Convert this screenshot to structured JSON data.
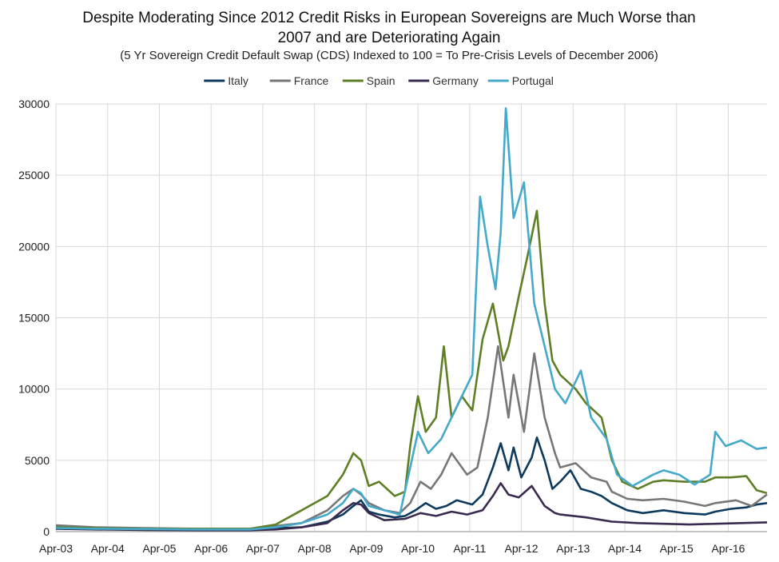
{
  "chart_data": {
    "type": "line",
    "title_line1": "Despite Moderating Since 2012 Credit Risks in European Sovereigns are Much Worse than",
    "title_line2": "2007 and are Deteriorating Again",
    "subtitle": "(5 Yr Sovereign Credit Default Swap (CDS) Indexed to 100 = To Pre-Crisis Levels of December 2006)",
    "xlabel": "",
    "ylabel": "",
    "ylim": [
      0,
      30000
    ],
    "yticks": [
      "0",
      "5000",
      "10000",
      "15000",
      "20000",
      "25000",
      "30000"
    ],
    "xticks": [
      "Apr-03",
      "Apr-04",
      "Apr-05",
      "Apr-06",
      "Apr-07",
      "Apr-08",
      "Apr-09",
      "Apr-10",
      "Apr-11",
      "Apr-12",
      "Apr-13",
      "Apr-14",
      "Apr-15",
      "Apr-16"
    ],
    "xlim": [
      2003.25,
      2017.0
    ],
    "grid": true,
    "legend_position": "top",
    "series": [
      {
        "name": "Italy",
        "color": "#0d3a5c",
        "points": [
          [
            2003.25,
            300
          ],
          [
            2004.0,
            250
          ],
          [
            2005.0,
            200
          ],
          [
            2006.0,
            150
          ],
          [
            2007.0,
            150
          ],
          [
            2007.5,
            250
          ],
          [
            2008.0,
            300
          ],
          [
            2008.5,
            700
          ],
          [
            2008.8,
            1200
          ],
          [
            2009.0,
            1800
          ],
          [
            2009.15,
            2200
          ],
          [
            2009.3,
            1400
          ],
          [
            2009.5,
            1200
          ],
          [
            2009.8,
            1000
          ],
          [
            2010.0,
            1100
          ],
          [
            2010.2,
            1500
          ],
          [
            2010.4,
            2000
          ],
          [
            2010.6,
            1600
          ],
          [
            2010.8,
            1800
          ],
          [
            2011.0,
            2200
          ],
          [
            2011.3,
            1900
          ],
          [
            2011.5,
            2600
          ],
          [
            2011.7,
            4500
          ],
          [
            2011.85,
            6200
          ],
          [
            2012.0,
            4300
          ],
          [
            2012.1,
            5900
          ],
          [
            2012.25,
            3800
          ],
          [
            2012.45,
            5200
          ],
          [
            2012.55,
            6600
          ],
          [
            2012.7,
            5000
          ],
          [
            2012.85,
            3000
          ],
          [
            2013.0,
            3500
          ],
          [
            2013.2,
            4300
          ],
          [
            2013.4,
            3000
          ],
          [
            2013.6,
            2800
          ],
          [
            2013.8,
            2500
          ],
          [
            2014.0,
            2000
          ],
          [
            2014.3,
            1500
          ],
          [
            2014.6,
            1300
          ],
          [
            2015.0,
            1500
          ],
          [
            2015.4,
            1300
          ],
          [
            2015.8,
            1200
          ],
          [
            2016.0,
            1400
          ],
          [
            2016.3,
            1600
          ],
          [
            2016.6,
            1700
          ],
          [
            2016.8,
            1900
          ],
          [
            2017.0,
            2000
          ]
        ]
      },
      {
        "name": "France",
        "color": "#777777",
        "points": [
          [
            2003.25,
            450
          ],
          [
            2004.0,
            300
          ],
          [
            2005.0,
            250
          ],
          [
            2006.0,
            200
          ],
          [
            2007.0,
            200
          ],
          [
            2007.5,
            400
          ],
          [
            2008.0,
            600
          ],
          [
            2008.5,
            1500
          ],
          [
            2008.8,
            2500
          ],
          [
            2009.0,
            3000
          ],
          [
            2009.15,
            2600
          ],
          [
            2009.3,
            2000
          ],
          [
            2009.6,
            1500
          ],
          [
            2009.9,
            1300
          ],
          [
            2010.1,
            2000
          ],
          [
            2010.3,
            3500
          ],
          [
            2010.5,
            3000
          ],
          [
            2010.7,
            4000
          ],
          [
            2010.9,
            5500
          ],
          [
            2011.2,
            4000
          ],
          [
            2011.4,
            4500
          ],
          [
            2011.6,
            8000
          ],
          [
            2011.8,
            13000
          ],
          [
            2012.0,
            8000
          ],
          [
            2012.1,
            11000
          ],
          [
            2012.3,
            7000
          ],
          [
            2012.5,
            12500
          ],
          [
            2012.7,
            8000
          ],
          [
            2012.9,
            5500
          ],
          [
            2013.0,
            4500
          ],
          [
            2013.3,
            4800
          ],
          [
            2013.6,
            3800
          ],
          [
            2013.9,
            3500
          ],
          [
            2014.0,
            2800
          ],
          [
            2014.3,
            2300
          ],
          [
            2014.6,
            2200
          ],
          [
            2015.0,
            2300
          ],
          [
            2015.4,
            2100
          ],
          [
            2015.8,
            1800
          ],
          [
            2016.0,
            2000
          ],
          [
            2016.4,
            2200
          ],
          [
            2016.7,
            1800
          ],
          [
            2017.0,
            2600
          ]
        ]
      },
      {
        "name": "Spain",
        "color": "#5e7f25",
        "points": [
          [
            2003.25,
            300
          ],
          [
            2004.0,
            250
          ],
          [
            2005.0,
            200
          ],
          [
            2006.0,
            200
          ],
          [
            2007.0,
            200
          ],
          [
            2007.5,
            500
          ],
          [
            2008.0,
            1500
          ],
          [
            2008.5,
            2500
          ],
          [
            2008.8,
            4000
          ],
          [
            2009.0,
            5500
          ],
          [
            2009.15,
            5000
          ],
          [
            2009.3,
            3200
          ],
          [
            2009.5,
            3500
          ],
          [
            2009.8,
            2500
          ],
          [
            2010.0,
            2800
          ],
          [
            2010.1,
            6000
          ],
          [
            2010.25,
            9500
          ],
          [
            2010.4,
            7000
          ],
          [
            2010.6,
            8000
          ],
          [
            2010.75,
            13000
          ],
          [
            2010.9,
            8000
          ],
          [
            2011.1,
            9500
          ],
          [
            2011.3,
            8500
          ],
          [
            2011.5,
            13500
          ],
          [
            2011.7,
            16000
          ],
          [
            2011.9,
            12000
          ],
          [
            2012.0,
            13000
          ],
          [
            2012.2,
            16500
          ],
          [
            2012.35,
            19000
          ],
          [
            2012.55,
            22500
          ],
          [
            2012.7,
            16000
          ],
          [
            2012.85,
            12000
          ],
          [
            2013.0,
            11000
          ],
          [
            2013.3,
            10000
          ],
          [
            2013.5,
            9000
          ],
          [
            2013.8,
            8000
          ],
          [
            2014.0,
            5000
          ],
          [
            2014.2,
            3500
          ],
          [
            2014.5,
            3000
          ],
          [
            2014.8,
            3500
          ],
          [
            2015.0,
            3600
          ],
          [
            2015.4,
            3500
          ],
          [
            2015.8,
            3500
          ],
          [
            2016.0,
            3800
          ],
          [
            2016.3,
            3800
          ],
          [
            2016.6,
            3900
          ],
          [
            2016.8,
            2900
          ],
          [
            2017.0,
            2700
          ]
        ]
      },
      {
        "name": "Germany",
        "color": "#3a2a4f",
        "points": [
          [
            2003.25,
            200
          ],
          [
            2004.0,
            150
          ],
          [
            2005.0,
            120
          ],
          [
            2006.0,
            100
          ],
          [
            2007.0,
            100
          ],
          [
            2007.5,
            150
          ],
          [
            2008.0,
            300
          ],
          [
            2008.5,
            600
          ],
          [
            2008.8,
            1500
          ],
          [
            2009.0,
            2000
          ],
          [
            2009.15,
            1900
          ],
          [
            2009.3,
            1300
          ],
          [
            2009.6,
            800
          ],
          [
            2010.0,
            900
          ],
          [
            2010.3,
            1300
          ],
          [
            2010.6,
            1100
          ],
          [
            2010.9,
            1400
          ],
          [
            2011.2,
            1200
          ],
          [
            2011.5,
            1500
          ],
          [
            2011.7,
            2500
          ],
          [
            2011.85,
            3400
          ],
          [
            2012.0,
            2600
          ],
          [
            2012.2,
            2400
          ],
          [
            2012.45,
            3200
          ],
          [
            2012.7,
            1800
          ],
          [
            2012.9,
            1300
          ],
          [
            2013.0,
            1200
          ],
          [
            2013.5,
            1000
          ],
          [
            2014.0,
            700
          ],
          [
            2014.5,
            600
          ],
          [
            2015.0,
            550
          ],
          [
            2015.5,
            500
          ],
          [
            2016.0,
            550
          ],
          [
            2016.5,
            600
          ],
          [
            2017.0,
            650
          ]
        ]
      },
      {
        "name": "Portugal",
        "color": "#45a9c9",
        "points": [
          [
            2003.25,
            250
          ],
          [
            2004.0,
            200
          ],
          [
            2005.0,
            180
          ],
          [
            2006.0,
            150
          ],
          [
            2007.0,
            150
          ],
          [
            2007.5,
            300
          ],
          [
            2008.0,
            600
          ],
          [
            2008.5,
            1200
          ],
          [
            2008.8,
            2000
          ],
          [
            2009.0,
            3000
          ],
          [
            2009.15,
            2700
          ],
          [
            2009.3,
            1800
          ],
          [
            2009.6,
            1500
          ],
          [
            2009.9,
            1200
          ],
          [
            2010.1,
            4500
          ],
          [
            2010.25,
            7000
          ],
          [
            2010.45,
            5500
          ],
          [
            2010.7,
            6500
          ],
          [
            2010.9,
            8000
          ],
          [
            2011.1,
            9500
          ],
          [
            2011.3,
            11000
          ],
          [
            2011.45,
            23500
          ],
          [
            2011.6,
            20000
          ],
          [
            2011.75,
            17000
          ],
          [
            2011.85,
            21000
          ],
          [
            2011.95,
            29700
          ],
          [
            2012.1,
            22000
          ],
          [
            2012.3,
            24500
          ],
          [
            2012.5,
            16000
          ],
          [
            2012.7,
            13000
          ],
          [
            2012.9,
            10000
          ],
          [
            2013.1,
            9000
          ],
          [
            2013.4,
            11300
          ],
          [
            2013.6,
            8000
          ],
          [
            2013.9,
            6500
          ],
          [
            2014.1,
            4000
          ],
          [
            2014.4,
            3200
          ],
          [
            2014.8,
            4000
          ],
          [
            2015.0,
            4300
          ],
          [
            2015.3,
            4000
          ],
          [
            2015.6,
            3300
          ],
          [
            2015.9,
            4000
          ],
          [
            2016.0,
            7000
          ],
          [
            2016.2,
            6000
          ],
          [
            2016.5,
            6400
          ],
          [
            2016.8,
            5800
          ],
          [
            2017.0,
            5900
          ]
        ]
      }
    ]
  }
}
